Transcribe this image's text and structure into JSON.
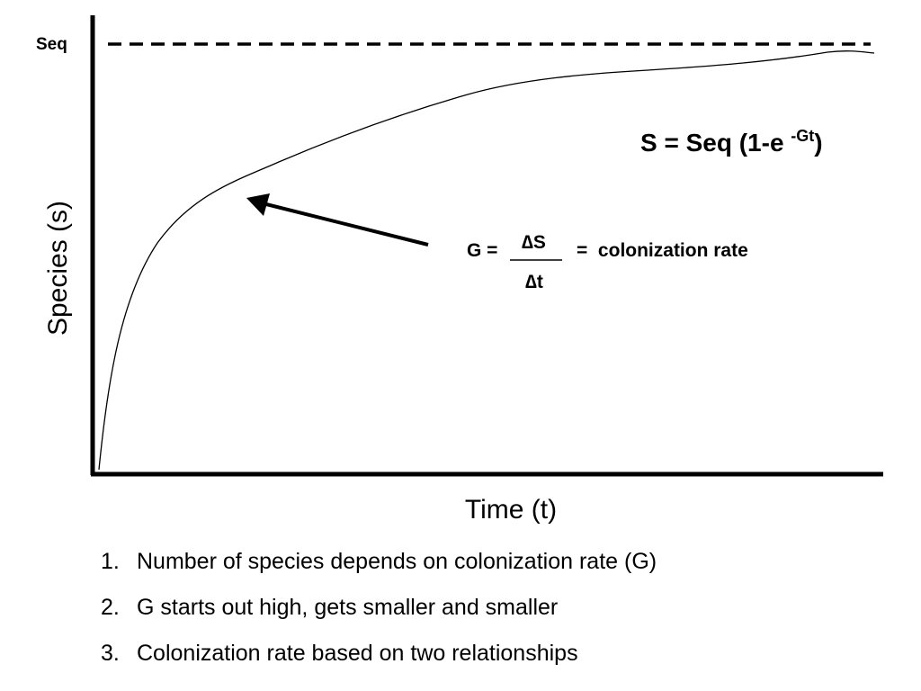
{
  "diagram": {
    "seq_label": "Seq",
    "y_axis_label": "Species (s)",
    "x_axis_label": "Time (t)",
    "equation": {
      "main": "S = Seq (1-e ",
      "superscript": "-Gt",
      "close": ")"
    },
    "rate_definition": {
      "lhs": "G =",
      "numerator": "∆S",
      "denominator": "∆t",
      "rhs": "=  colonization rate"
    }
  },
  "points": [
    {
      "number": "1.",
      "text": "Number of species depends on colonization rate (G)"
    },
    {
      "number": "2.",
      "text": "G starts out high, gets smaller and smaller"
    },
    {
      "number": "3.",
      "text": "Colonization rate based on two relationships"
    }
  ]
}
